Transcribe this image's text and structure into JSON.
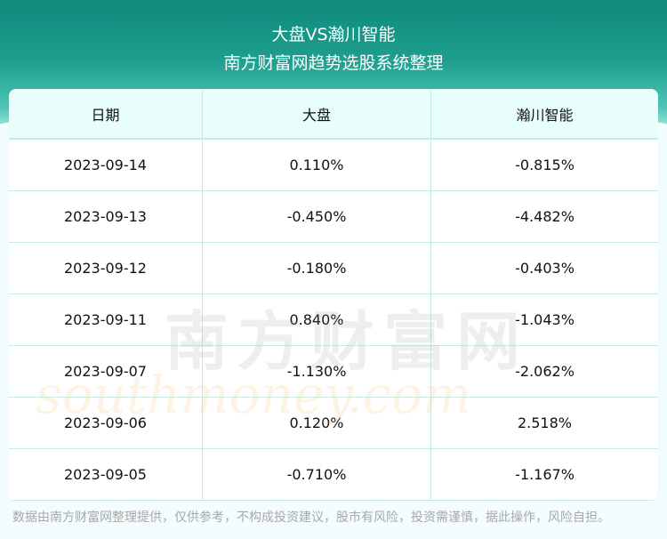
{
  "header": {
    "title": "大盘VS瀚川智能",
    "subtitle": "南方财富网趋势选股系统整理"
  },
  "table": {
    "columns": [
      "日期",
      "大盘",
      "瀚川智能"
    ],
    "rows": [
      [
        "2023-09-14",
        "0.110%",
        "-0.815%"
      ],
      [
        "2023-09-13",
        "-0.450%",
        "-4.482%"
      ],
      [
        "2023-09-12",
        "-0.180%",
        "-0.403%"
      ],
      [
        "2023-09-11",
        "0.840%",
        "-1.043%"
      ],
      [
        "2023-09-07",
        "-1.130%",
        "-2.062%"
      ],
      [
        "2023-09-06",
        "0.120%",
        "2.518%"
      ],
      [
        "2023-09-05",
        "-0.710%",
        "-1.167%"
      ]
    ]
  },
  "watermark": {
    "cn": "南方财富网",
    "en": "southmoney.com"
  },
  "footer": "数据由南方财富网整理提供，仅供参考，不构成投资建议，股市有风险，投资需谨慎，据此操作，风险自担。",
  "colors": {
    "header_bg": "#1e9e8d",
    "table_head_bg": "#e8fefd",
    "border": "#c6ebe7"
  }
}
